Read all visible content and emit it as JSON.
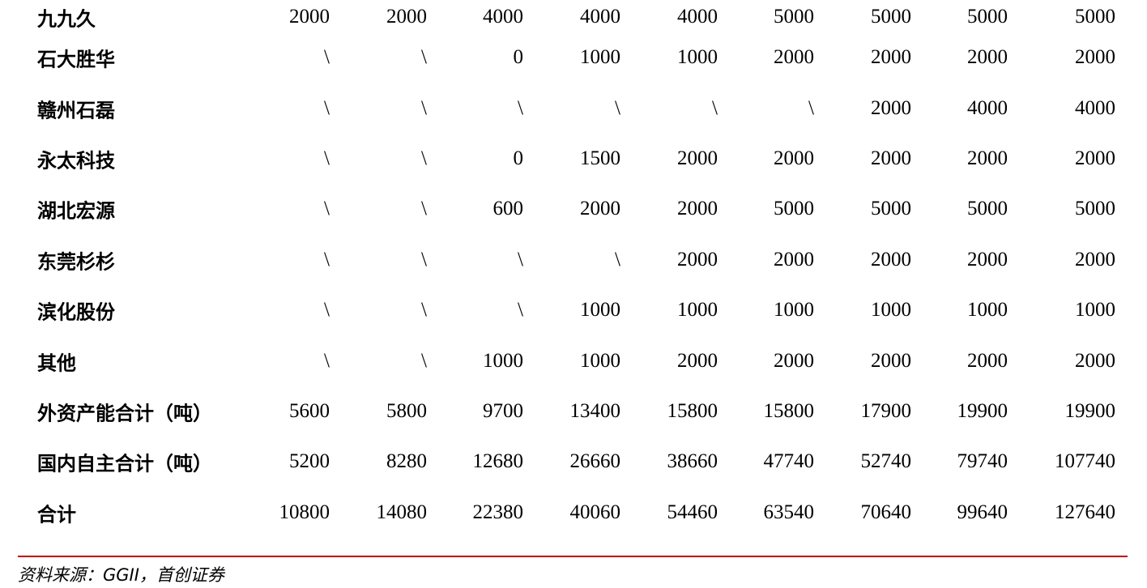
{
  "table": {
    "rows": [
      {
        "label": "九九久",
        "values": [
          "2000",
          "2000",
          "4000",
          "4000",
          "4000",
          "5000",
          "5000",
          "5000",
          "5000"
        ]
      },
      {
        "label": "石大胜华",
        "values": [
          "\\",
          "\\",
          "0",
          "1000",
          "1000",
          "2000",
          "2000",
          "2000",
          "2000"
        ]
      },
      {
        "label": "赣州石磊",
        "values": [
          "\\",
          "\\",
          "\\",
          "\\",
          "\\",
          "\\",
          "2000",
          "4000",
          "4000"
        ]
      },
      {
        "label": "永太科技",
        "values": [
          "\\",
          "\\",
          "0",
          "1500",
          "2000",
          "2000",
          "2000",
          "2000",
          "2000"
        ]
      },
      {
        "label": "湖北宏源",
        "values": [
          "\\",
          "\\",
          "600",
          "2000",
          "2000",
          "5000",
          "5000",
          "5000",
          "5000"
        ]
      },
      {
        "label": "东莞杉杉",
        "values": [
          "\\",
          "\\",
          "\\",
          "\\",
          "2000",
          "2000",
          "2000",
          "2000",
          "2000"
        ]
      },
      {
        "label": "滨化股份",
        "values": [
          "\\",
          "\\",
          "\\",
          "1000",
          "1000",
          "1000",
          "1000",
          "1000",
          "1000"
        ]
      },
      {
        "label": "其他",
        "values": [
          "\\",
          "\\",
          "1000",
          "1000",
          "2000",
          "2000",
          "2000",
          "2000",
          "2000"
        ]
      },
      {
        "label": "外资产能合计（吨）",
        "values": [
          "5600",
          "5800",
          "9700",
          "13400",
          "15800",
          "15800",
          "17900",
          "19900",
          "19900"
        ]
      },
      {
        "label": "国内自主合计（吨）",
        "values": [
          "5200",
          "8280",
          "12680",
          "26660",
          "38660",
          "47740",
          "52740",
          "79740",
          "107740"
        ]
      },
      {
        "label": "合计",
        "values": [
          "10800",
          "14080",
          "22380",
          "40060",
          "54460",
          "63540",
          "70640",
          "99640",
          "127640"
        ]
      }
    ]
  },
  "source_note": "资料来源：GGII，首创证券",
  "colors": {
    "divider": "#c00000",
    "text": "#000000"
  }
}
